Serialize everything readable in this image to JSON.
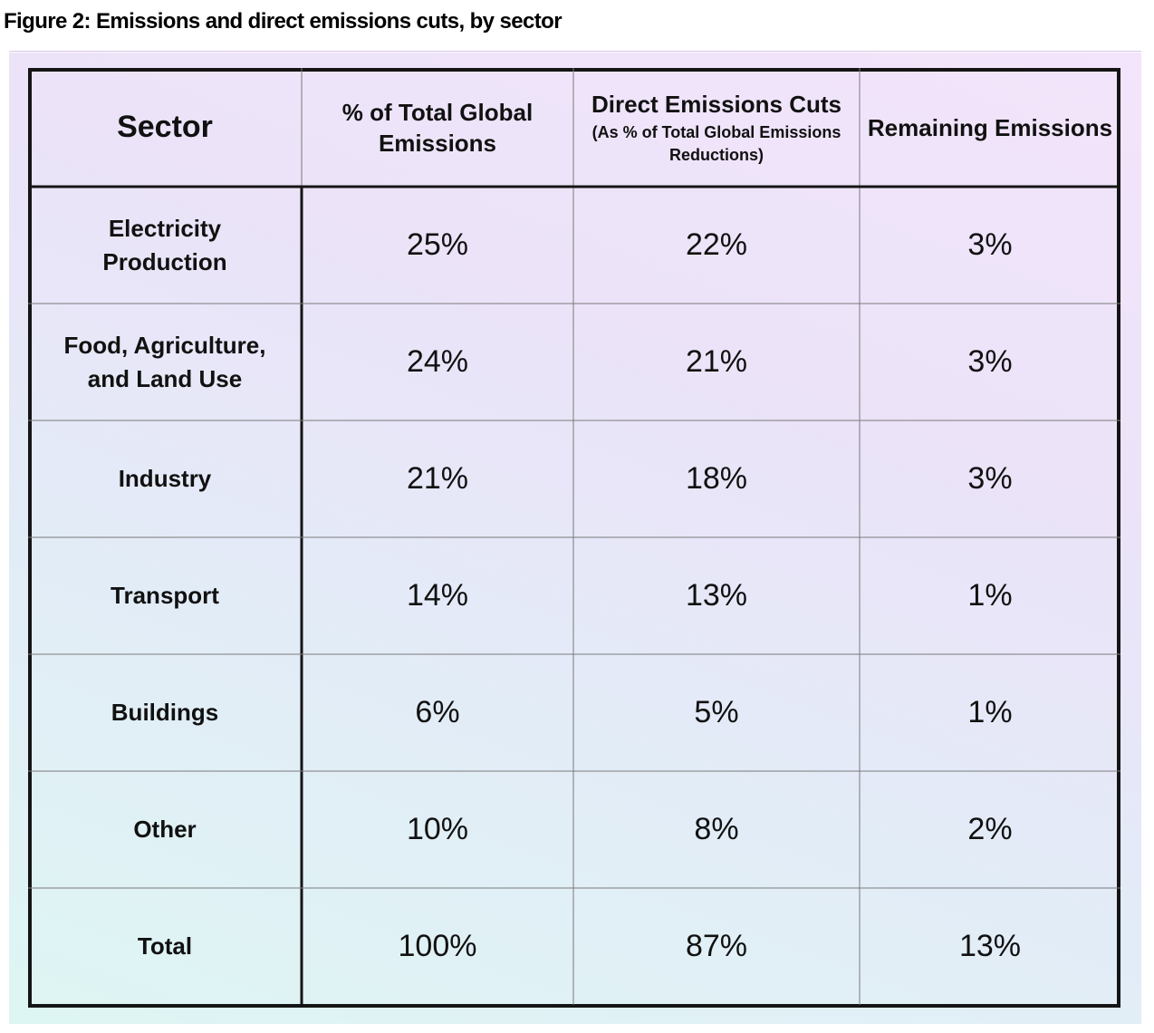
{
  "figure_title": "Figure 2: Emissions and direct emissions cuts, by sector",
  "chart_data": {
    "type": "table",
    "title": "Figure 2: Emissions and direct emissions cuts, by sector",
    "columns": [
      {
        "label": "Sector"
      },
      {
        "label": "% of Total Global Emissions"
      },
      {
        "label": "Direct Emissions Cuts",
        "sublabel": "(As % of Total  Global Emissions Reductions)"
      },
      {
        "label": "Remaining Emissions"
      }
    ],
    "rows": [
      {
        "sector": "Electricity Production",
        "total_share": "25%",
        "direct_cuts": "22%",
        "remaining": "3%"
      },
      {
        "sector": "Food, Agriculture, and Land Use",
        "total_share": "24%",
        "direct_cuts": "21%",
        "remaining": "3%"
      },
      {
        "sector": "Industry",
        "total_share": "21%",
        "direct_cuts": "18%",
        "remaining": "3%"
      },
      {
        "sector": "Transport",
        "total_share": "14%",
        "direct_cuts": "13%",
        "remaining": "1%"
      },
      {
        "sector": "Buildings",
        "total_share": "6%",
        "direct_cuts": "5%",
        "remaining": "1%"
      },
      {
        "sector": "Other",
        "total_share": "10%",
        "direct_cuts": "8%",
        "remaining": "2%"
      },
      {
        "sector": "Total",
        "total_share": "100%",
        "direct_cuts": "87%",
        "remaining": "13%"
      }
    ],
    "colors": {
      "border": "#151515",
      "grid_line": "#7a7a7a",
      "background_top": "#f3e5fb",
      "background_bottom": "#def6f3"
    }
  }
}
